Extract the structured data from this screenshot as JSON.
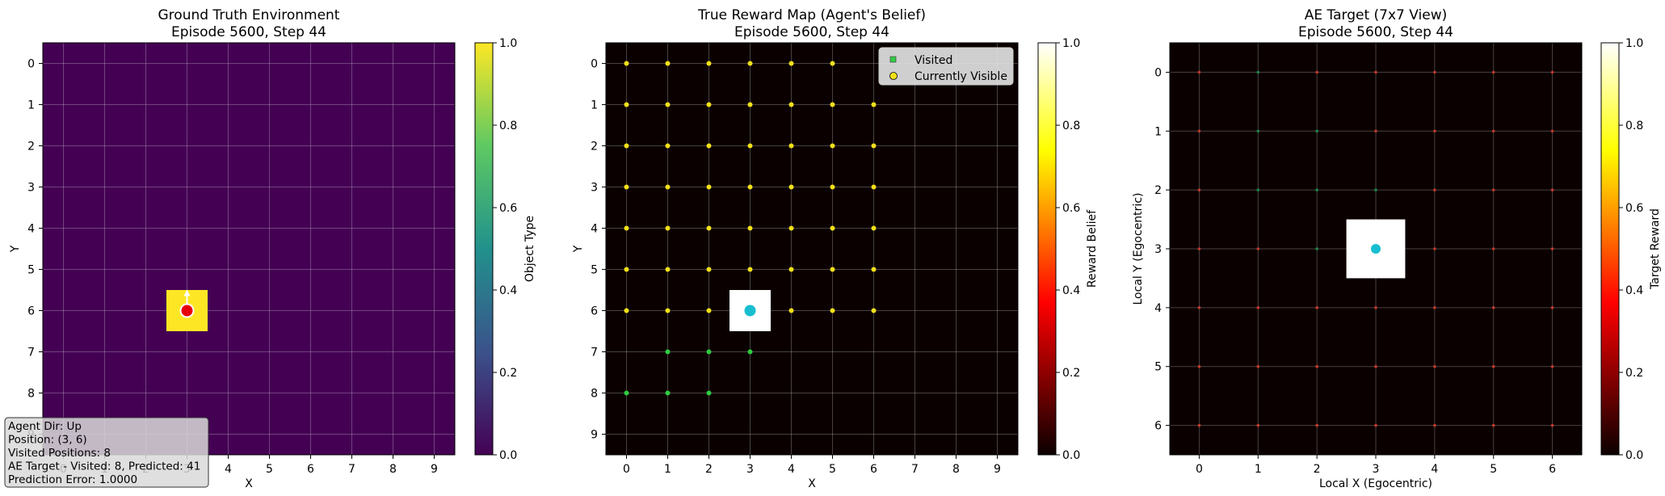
{
  "chart_data": [
    {
      "type": "heatmap",
      "title_line1": "Ground Truth Environment",
      "title_line2": "Episode 5600, Step 44",
      "xlabel": "X",
      "ylabel": "Y",
      "x_ticks": [
        "0",
        "1",
        "2",
        "3",
        "4",
        "5",
        "6",
        "7",
        "8",
        "9"
      ],
      "y_ticks": [
        "0",
        "1",
        "2",
        "3",
        "4",
        "5",
        "6",
        "7",
        "8",
        "9"
      ],
      "grid": true,
      "colormap": "viridis",
      "background_value": 0.0,
      "cells": [
        {
          "x": 3,
          "y": 6,
          "value": 1.0
        }
      ],
      "agent": {
        "x": 3,
        "y": 6,
        "color": "#e8000b",
        "direction": "up"
      },
      "colorbar": {
        "label": "Object Type",
        "ticks": [
          "0.0",
          "0.2",
          "0.4",
          "0.6",
          "0.8",
          "1.0"
        ],
        "range": [
          0,
          1
        ]
      },
      "info_box": {
        "lines": [
          "Agent Dir: Up",
          "Position: (3, 6)",
          "Visited Positions: 8",
          "AE Target - Visited: 8, Predicted: 41",
          "Prediction Error: 1.0000"
        ]
      }
    },
    {
      "type": "heatmap",
      "title_line1": "True Reward Map (Agent's Belief)",
      "title_line2": "Episode 5600, Step 44",
      "xlabel": "X",
      "ylabel": "Y",
      "x_ticks": [
        "0",
        "1",
        "2",
        "3",
        "4",
        "5",
        "6",
        "7",
        "8",
        "9"
      ],
      "y_ticks": [
        "0",
        "1",
        "2",
        "3",
        "4",
        "5",
        "6",
        "7",
        "8",
        "9"
      ],
      "grid": true,
      "colormap": "hot",
      "background_value": 0.0,
      "cells": [
        {
          "x": 3,
          "y": 6,
          "value": 1.0
        }
      ],
      "agent": {
        "x": 3,
        "y": 6,
        "color": "#17becf"
      },
      "visible_color": "#f2e01a",
      "visited_color": "#2ecc40",
      "visible_points": [
        [
          0,
          0
        ],
        [
          1,
          0
        ],
        [
          2,
          0
        ],
        [
          3,
          0
        ],
        [
          4,
          0
        ],
        [
          5,
          0
        ],
        [
          0,
          1
        ],
        [
          1,
          1
        ],
        [
          2,
          1
        ],
        [
          3,
          1
        ],
        [
          4,
          1
        ],
        [
          5,
          1
        ],
        [
          6,
          1
        ],
        [
          0,
          2
        ],
        [
          1,
          2
        ],
        [
          2,
          2
        ],
        [
          3,
          2
        ],
        [
          4,
          2
        ],
        [
          5,
          2
        ],
        [
          6,
          2
        ],
        [
          0,
          3
        ],
        [
          1,
          3
        ],
        [
          2,
          3
        ],
        [
          3,
          3
        ],
        [
          4,
          3
        ],
        [
          5,
          3
        ],
        [
          6,
          3
        ],
        [
          0,
          4
        ],
        [
          1,
          4
        ],
        [
          2,
          4
        ],
        [
          3,
          4
        ],
        [
          4,
          4
        ],
        [
          5,
          4
        ],
        [
          6,
          4
        ],
        [
          0,
          5
        ],
        [
          1,
          5
        ],
        [
          2,
          5
        ],
        [
          3,
          5
        ],
        [
          4,
          5
        ],
        [
          5,
          5
        ],
        [
          6,
          5
        ],
        [
          0,
          6
        ],
        [
          1,
          6
        ],
        [
          2,
          6
        ],
        [
          4,
          6
        ],
        [
          5,
          6
        ],
        [
          6,
          6
        ]
      ],
      "visited_points": [
        [
          1,
          7
        ],
        [
          2,
          7
        ],
        [
          3,
          7
        ],
        [
          0,
          8
        ],
        [
          1,
          8
        ],
        [
          2,
          8
        ]
      ],
      "legend": {
        "placement": "top-right",
        "entries": [
          "Visited",
          "Currently Visible"
        ]
      },
      "colorbar": {
        "label": "Reward Belief",
        "ticks": [
          "0.0",
          "0.2",
          "0.4",
          "0.6",
          "0.8",
          "1.0"
        ],
        "range": [
          0,
          1
        ]
      }
    },
    {
      "type": "heatmap",
      "title_line1": "AE Target (7x7 View)",
      "title_line2": "Episode 5600, Step 44",
      "xlabel": "Local X (Egocentric)",
      "ylabel": "Local Y (Egocentric)",
      "x_ticks": [
        "0",
        "1",
        "2",
        "3",
        "4",
        "5",
        "6"
      ],
      "y_ticks": [
        "0",
        "1",
        "2",
        "3",
        "4",
        "5",
        "6"
      ],
      "grid": true,
      "colormap": "hot",
      "background_value": 0.0,
      "cells": [
        {
          "x": 3,
          "y": 3,
          "value": 1.0
        }
      ],
      "agent": {
        "x": 3,
        "y": 3,
        "color": "#17becf"
      },
      "red_color": "#c0392b",
      "green_color": "#1e8449",
      "green_points": [
        [
          1,
          0
        ],
        [
          1,
          1
        ],
        [
          2,
          1
        ],
        [
          1,
          2
        ],
        [
          2,
          2
        ],
        [
          3,
          2
        ],
        [
          2,
          3
        ]
      ],
      "colorbar": {
        "label": "Target Reward",
        "ticks": [
          "0.0",
          "0.2",
          "0.4",
          "0.6",
          "0.8",
          "1.0"
        ],
        "range": [
          0,
          1
        ]
      }
    }
  ]
}
